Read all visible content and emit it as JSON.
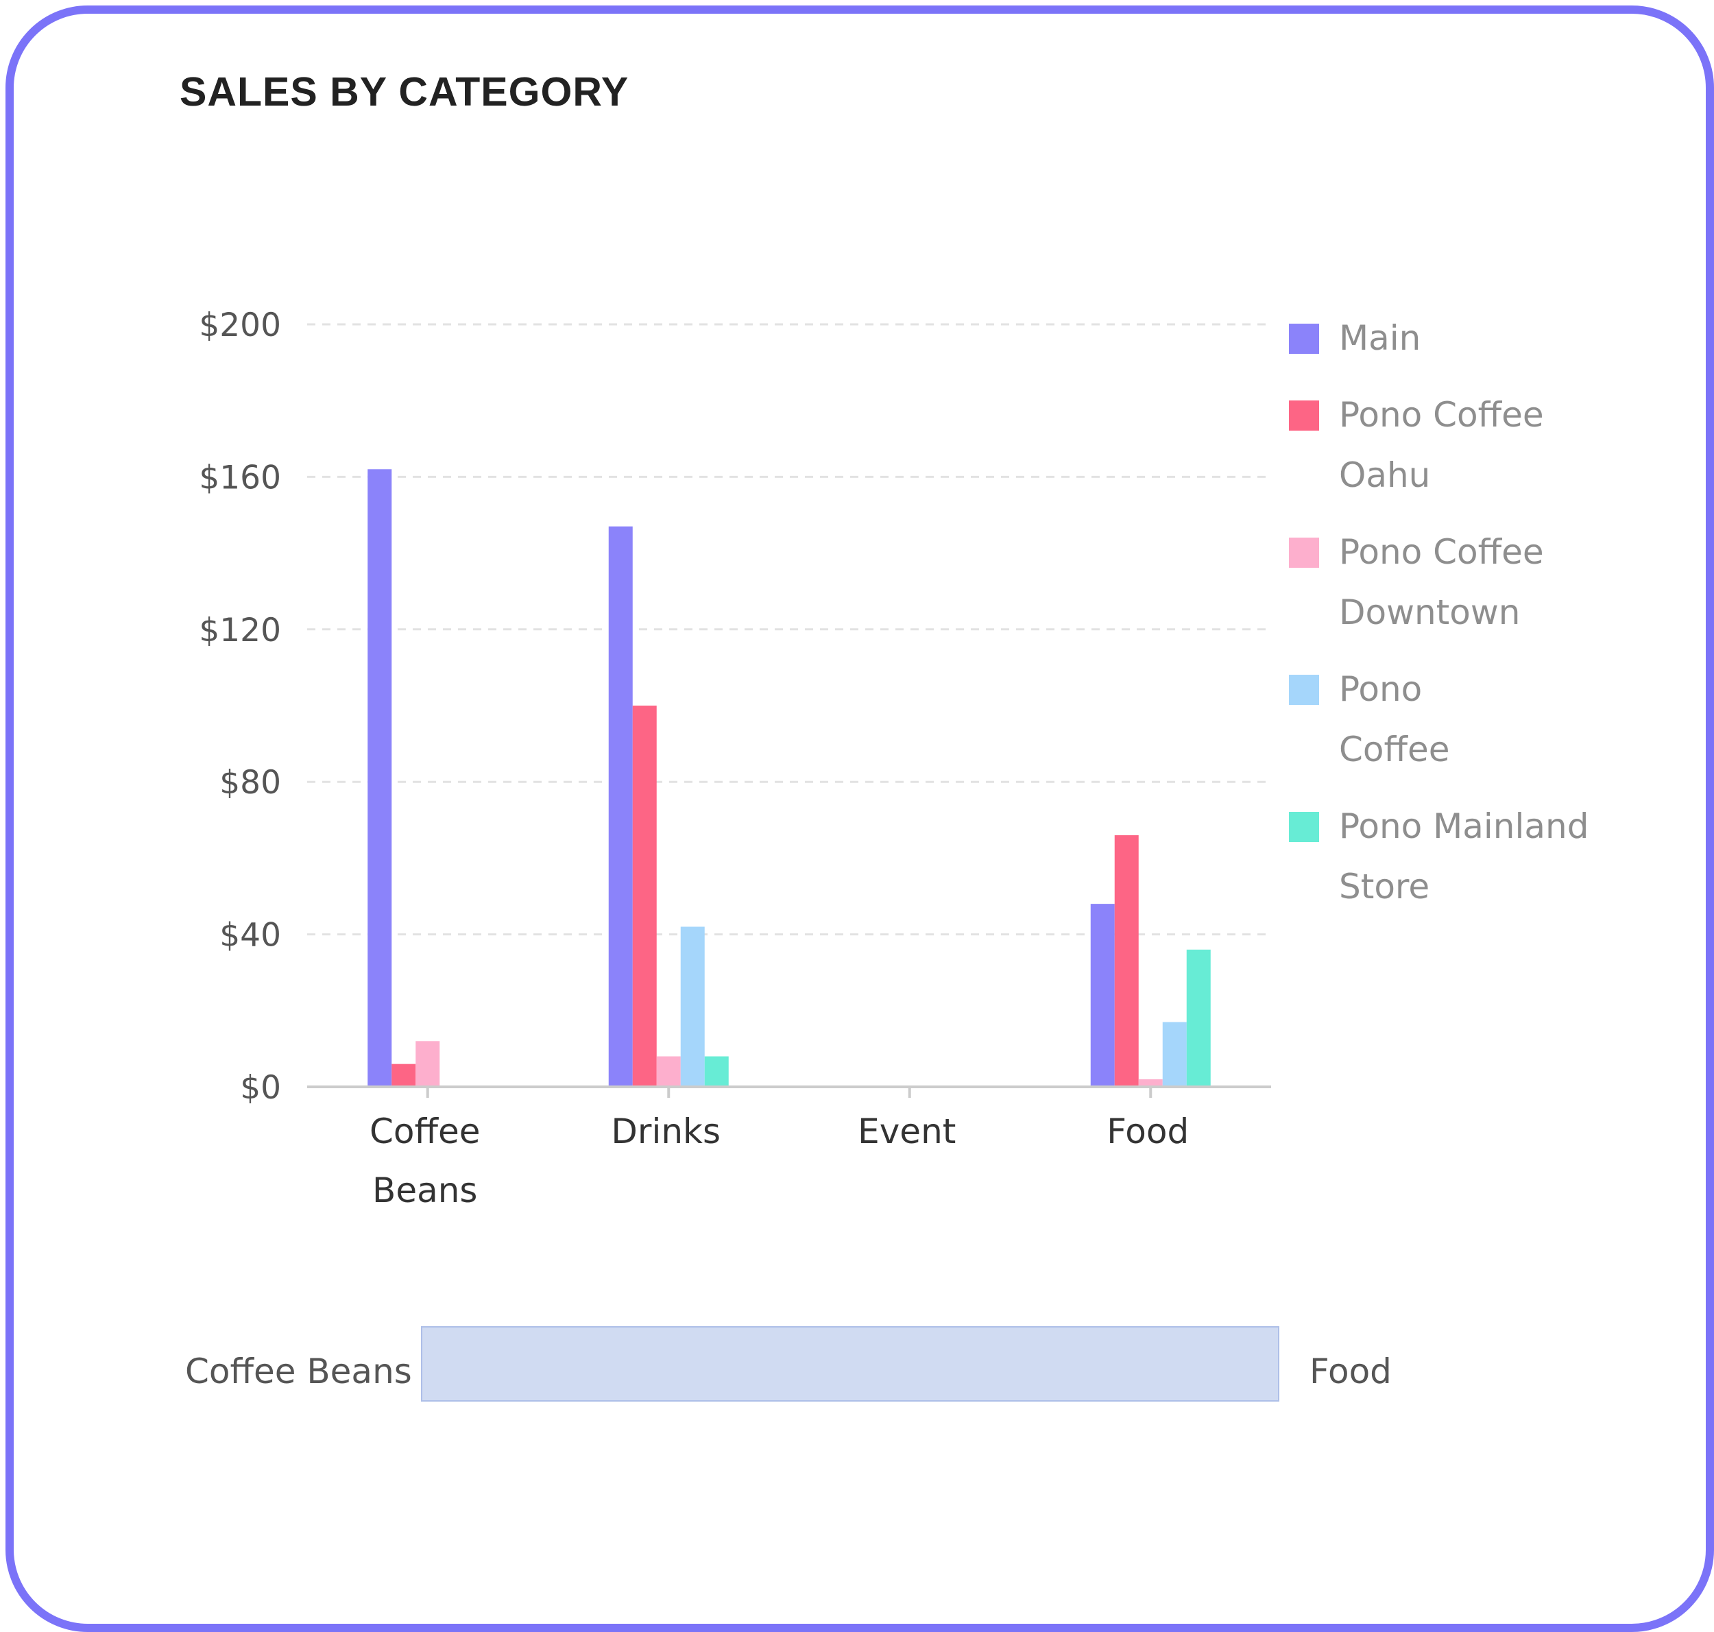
{
  "card": {
    "border_color": "#7b73f8"
  },
  "chart_data": {
    "type": "bar",
    "title": "SALES BY CATEGORY",
    "categories": [
      {
        "lines": [
          "Coffee",
          "Beans"
        ]
      },
      {
        "lines": [
          "Drinks"
        ]
      },
      {
        "lines": [
          "Event"
        ]
      },
      {
        "lines": [
          "Food"
        ]
      }
    ],
    "y_ticks": [
      "$0",
      "$40",
      "$80",
      "$120",
      "$160",
      "$200"
    ],
    "y_tick_values": [
      0,
      40,
      80,
      120,
      160,
      200
    ],
    "ylim": [
      0,
      200
    ],
    "grid": true,
    "legend_position": "right",
    "series": [
      {
        "name": "Main",
        "legend_lines": [
          "Main"
        ],
        "color": "#8b83fa",
        "values": [
          162,
          147,
          0,
          48
        ]
      },
      {
        "name": "Pono Coffee Oahu",
        "legend_lines": [
          "Pono Coffee",
          "Oahu"
        ],
        "color": "#fd6585",
        "values": [
          6,
          100,
          0,
          66
        ]
      },
      {
        "name": "Pono Coffee Downtown",
        "legend_lines": [
          "Pono Coffee",
          "Downtown"
        ],
        "color": "#fdafcd",
        "values": [
          12,
          8,
          0,
          2
        ]
      },
      {
        "name": "Pono Coffee",
        "legend_lines": [
          "Pono",
          "Coffee"
        ],
        "color": "#a5d6fb",
        "values": [
          0,
          42,
          0,
          17
        ]
      },
      {
        "name": "Pono Mainland Store",
        "legend_lines": [
          "Pono Mainland",
          "Store"
        ],
        "color": "#67ecd5",
        "values": [
          0,
          8,
          0,
          36
        ]
      }
    ]
  },
  "range": {
    "start_label": "Coffee Beans",
    "end_label": "Food",
    "start_fraction": 0,
    "end_fraction": 1
  }
}
